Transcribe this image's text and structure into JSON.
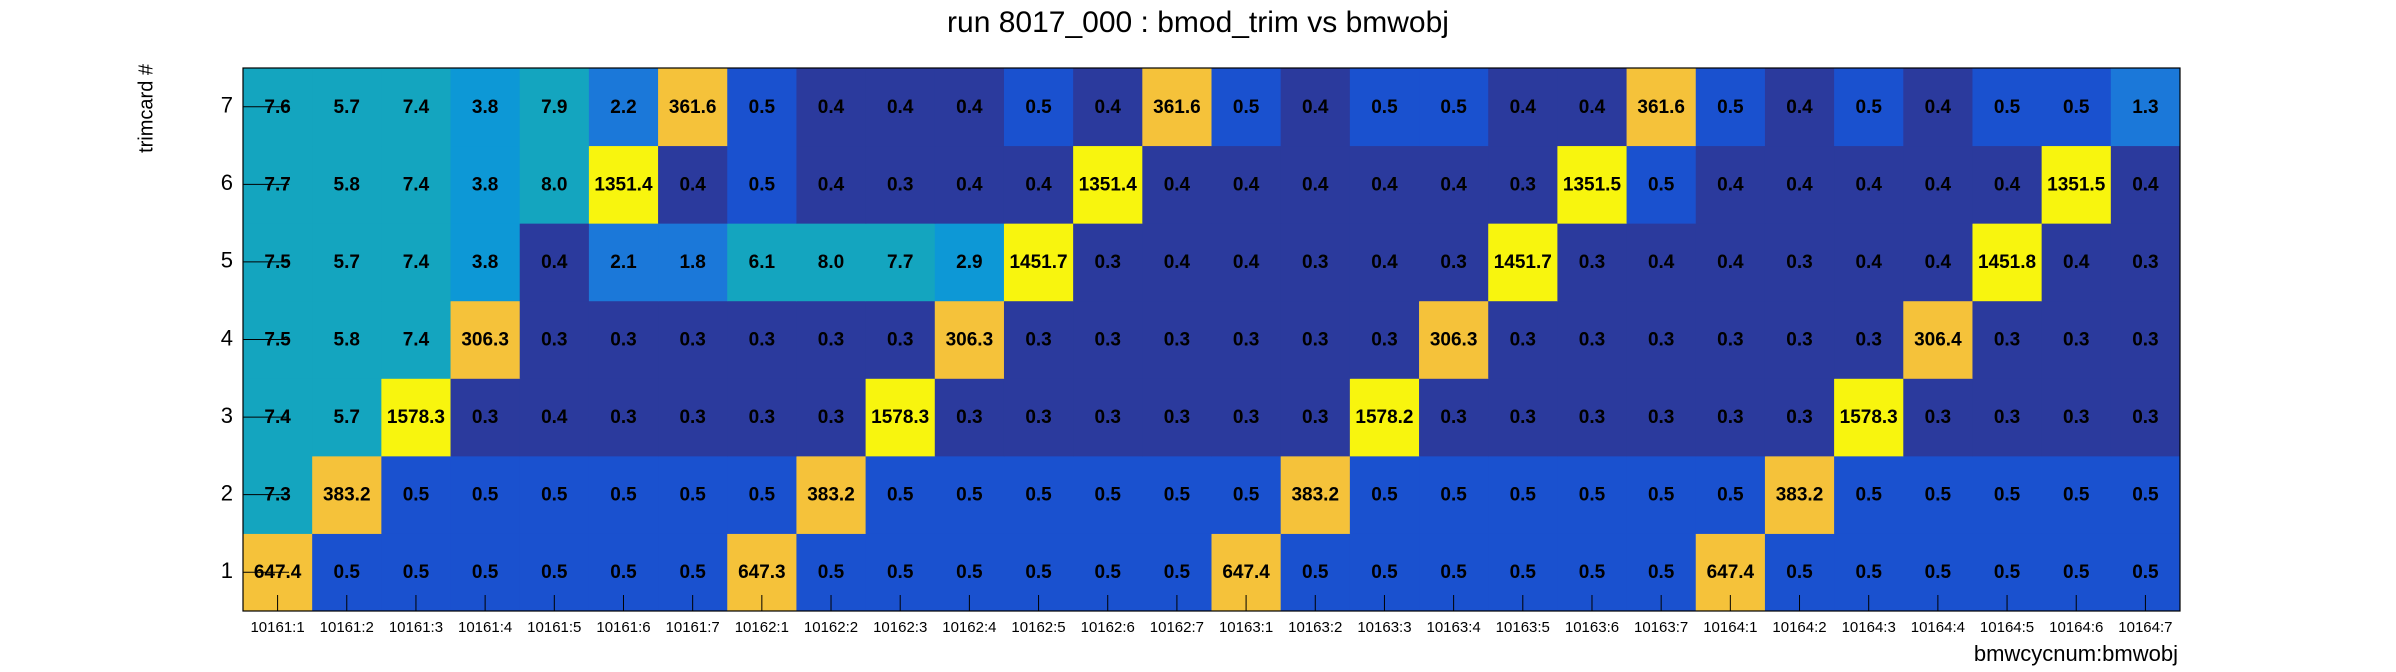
{
  "chart_data": {
    "type": "heatmap",
    "title": "run 8017_000 : bmod_trim vs bmwobj",
    "x_label": "bmwcycnum:bmwobj",
    "y_label": "trimcard #",
    "color_scale": "log",
    "x_categories": [
      "10161:1",
      "10161:2",
      "10161:3",
      "10161:4",
      "10161:5",
      "10161:6",
      "10161:7",
      "10162:1",
      "10162:2",
      "10162:3",
      "10162:4",
      "10162:5",
      "10162:6",
      "10162:7",
      "10163:1",
      "10163:2",
      "10163:3",
      "10163:4",
      "10163:5",
      "10163:6",
      "10163:7",
      "10164:1",
      "10164:2",
      "10164:3",
      "10164:4",
      "10164:5",
      "10164:6",
      "10164:7"
    ],
    "y_categories": [
      "1",
      "2",
      "3",
      "4",
      "5",
      "6",
      "7"
    ],
    "values": [
      [
        647.4,
        0.5,
        0.5,
        0.5,
        0.5,
        0.5,
        0.5,
        647.3,
        0.5,
        0.5,
        0.5,
        0.5,
        0.5,
        0.5,
        647.4,
        0.5,
        0.5,
        0.5,
        0.5,
        0.5,
        0.5,
        647.4,
        0.5,
        0.5,
        0.5,
        0.5,
        0.5,
        0.5
      ],
      [
        7.3,
        383.2,
        0.5,
        0.5,
        0.5,
        0.5,
        0.5,
        0.5,
        383.2,
        0.5,
        0.5,
        0.5,
        0.5,
        0.5,
        0.5,
        383.2,
        0.5,
        0.5,
        0.5,
        0.5,
        0.5,
        0.5,
        383.2,
        0.5,
        0.5,
        0.5,
        0.5,
        0.5
      ],
      [
        7.4,
        5.7,
        1578.3,
        0.3,
        0.4,
        0.3,
        0.3,
        0.3,
        0.3,
        1578.3,
        0.3,
        0.3,
        0.3,
        0.3,
        0.3,
        0.3,
        1578.2,
        0.3,
        0.3,
        0.3,
        0.3,
        0.3,
        0.3,
        1578.3,
        0.3,
        0.3,
        0.3,
        0.3
      ],
      [
        7.5,
        5.8,
        7.4,
        306.3,
        0.3,
        0.3,
        0.3,
        0.3,
        0.3,
        0.3,
        306.3,
        0.3,
        0.3,
        0.3,
        0.3,
        0.3,
        0.3,
        306.3,
        0.3,
        0.3,
        0.3,
        0.3,
        0.3,
        0.3,
        306.4,
        0.3,
        0.3,
        0.3
      ],
      [
        7.5,
        5.7,
        7.4,
        3.8,
        0.4,
        2.1,
        1.8,
        6.1,
        8.0,
        7.7,
        2.9,
        1451.7,
        0.3,
        0.4,
        0.4,
        0.3,
        0.4,
        0.3,
        1451.7,
        0.3,
        0.4,
        0.4,
        0.3,
        0.4,
        0.4,
        1451.8,
        0.4,
        0.3
      ],
      [
        7.7,
        5.8,
        7.4,
        3.8,
        8.0,
        1351.4,
        0.4,
        0.5,
        0.4,
        0.3,
        0.4,
        0.4,
        1351.4,
        0.4,
        0.4,
        0.4,
        0.4,
        0.4,
        0.3,
        1351.5,
        0.5,
        0.4,
        0.4,
        0.4,
        0.4,
        0.4,
        1351.5,
        0.4
      ],
      [
        7.6,
        5.7,
        7.4,
        3.8,
        7.9,
        2.2,
        361.6,
        0.5,
        0.4,
        0.4,
        0.4,
        0.5,
        0.4,
        361.6,
        0.5,
        0.4,
        0.5,
        0.5,
        0.4,
        0.4,
        361.6,
        0.5,
        0.4,
        0.5,
        0.4,
        0.5,
        0.5,
        1.3
      ]
    ],
    "value_labels": [
      [
        null,
        null,
        null,
        null,
        null,
        null,
        null,
        null,
        null,
        null,
        null,
        null,
        null,
        null,
        null,
        null,
        null,
        null,
        null,
        null,
        null,
        null,
        null,
        null,
        null,
        null,
        null,
        null
      ],
      [
        null,
        null,
        null,
        null,
        null,
        null,
        null,
        null,
        null,
        null,
        null,
        null,
        null,
        null,
        null,
        null,
        null,
        null,
        null,
        null,
        null,
        null,
        null,
        null,
        null,
        null,
        null,
        null
      ],
      [
        null,
        null,
        null,
        null,
        null,
        null,
        null,
        null,
        null,
        null,
        null,
        null,
        null,
        null,
        null,
        null,
        null,
        null,
        null,
        null,
        null,
        null,
        null,
        null,
        null,
        null,
        null,
        null
      ],
      [
        null,
        null,
        null,
        null,
        null,
        null,
        null,
        null,
        null,
        null,
        null,
        null,
        null,
        null,
        null,
        null,
        null,
        null,
        null,
        null,
        null,
        null,
        null,
        null,
        null,
        null,
        null,
        null
      ],
      [
        null,
        null,
        null,
        null,
        null,
        null,
        null,
        null,
        "8.0",
        null,
        null,
        null,
        null,
        null,
        null,
        null,
        null,
        null,
        null,
        null,
        null,
        null,
        null,
        null,
        null,
        null,
        null,
        null
      ],
      [
        null,
        null,
        null,
        null,
        "8.0",
        null,
        null,
        null,
        null,
        null,
        null,
        null,
        null,
        null,
        null,
        null,
        null,
        null,
        null,
        null,
        null,
        null,
        null,
        null,
        null,
        null,
        null,
        null
      ],
      [
        null,
        null,
        null,
        null,
        null,
        null,
        null,
        null,
        null,
        null,
        null,
        null,
        null,
        null,
        null,
        null,
        null,
        null,
        null,
        null,
        null,
        null,
        null,
        null,
        null,
        null,
        null,
        null
      ]
    ]
  }
}
